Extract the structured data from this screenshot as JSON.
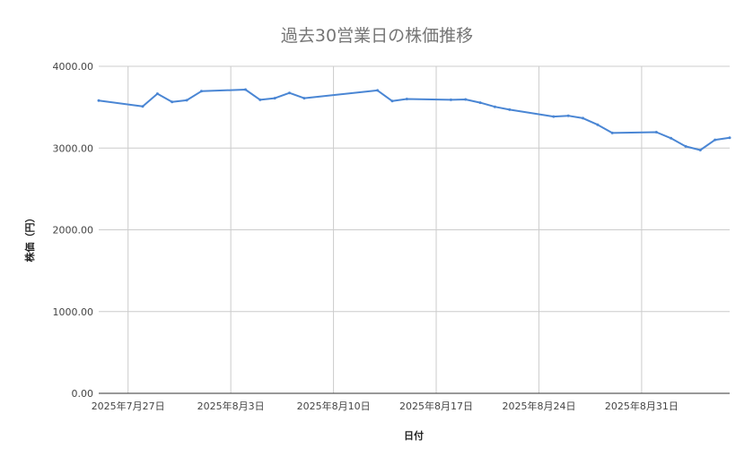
{
  "chart_data": {
    "type": "line",
    "title": "過去30営業日の株価推移",
    "xlabel": "日付",
    "ylabel": "株価（円）",
    "ylim": [
      0,
      4000
    ],
    "y_ticks": [
      "0.00",
      "1000.00",
      "2000.00",
      "3000.00",
      "4000.00"
    ],
    "x_tick_labels": [
      {
        "date": "2025-07-27",
        "label": "2025年7月27日"
      },
      {
        "date": "2025-08-03",
        "label": "2025年8月3日"
      },
      {
        "date": "2025-08-10",
        "label": "2025年8月10日"
      },
      {
        "date": "2025-08-17",
        "label": "2025年8月17日"
      },
      {
        "date": "2025-08-24",
        "label": "2025年8月24日"
      },
      {
        "date": "2025-08-31",
        "label": "2025年8月31日"
      }
    ],
    "xlim": [
      "2025-07-25",
      "2025-09-06"
    ],
    "grid": true,
    "legend": "none",
    "color": "#4a86d4",
    "series": [
      {
        "x": [
          "2025-07-25",
          "2025-07-28",
          "2025-07-29",
          "2025-07-30",
          "2025-07-31",
          "2025-08-01",
          "2025-08-04",
          "2025-08-05",
          "2025-08-06",
          "2025-08-07",
          "2025-08-08",
          "2025-08-13",
          "2025-08-14",
          "2025-08-15",
          "2025-08-18",
          "2025-08-19",
          "2025-08-20",
          "2025-08-21",
          "2025-08-22",
          "2025-08-25",
          "2025-08-26",
          "2025-08-27",
          "2025-08-28",
          "2025-08-29",
          "2025-09-01",
          "2025-09-02",
          "2025-09-03",
          "2025-09-04",
          "2025-09-05",
          "2025-09-06"
        ],
        "values": [
          3580,
          3510,
          3665,
          3565,
          3585,
          3695,
          3715,
          3590,
          3610,
          3675,
          3610,
          3705,
          3575,
          3600,
          3590,
          3595,
          3555,
          3505,
          3470,
          3385,
          3395,
          3365,
          3285,
          3185,
          3195,
          3120,
          3020,
          2975,
          3100,
          3125
        ]
      }
    ]
  }
}
